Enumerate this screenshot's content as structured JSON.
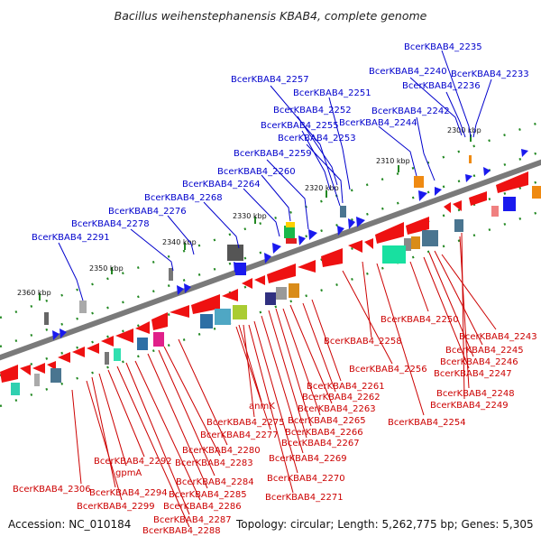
{
  "title": "Bacillus weihenstephanensis KBAB4, complete genome",
  "footer": {
    "accession": "Accession: NC_010184",
    "summary": "Topology: circular; Length: 5,262,775 bp; Genes: 5,305"
  },
  "colors": {
    "forward_label": "#0000cc",
    "reverse_label": "#cc0000",
    "forward_gene": "#1a1aee",
    "reverse_gene": "#ee1111",
    "backbone": "#7a7a7a",
    "tick": "#228822"
  },
  "kbp_labels": [
    "2300 kbp",
    "2310 kbp",
    "2320 kbp",
    "2330 kbp",
    "2340 kbp",
    "2350 kbp",
    "2360 kbp"
  ],
  "forward_labels": [
    "BcerKBAB4_2235",
    "BcerKBAB4_2240",
    "BcerKBAB4_2233",
    "BcerKBAB4_2236",
    "BcerKBAB4_2257",
    "BcerKBAB4_2251",
    "BcerKBAB4_2252",
    "BcerKBAB4_2242",
    "BcerKBAB4_2255",
    "BcerKBAB4_2244",
    "BcerKBAB4_2253",
    "BcerKBAB4_2259",
    "BcerKBAB4_2260",
    "BcerKBAB4_2264",
    "BcerKBAB4_2268",
    "BcerKBAB4_2276",
    "BcerKBAB4_2278",
    "BcerKBAB4_2291"
  ],
  "reverse_labels": [
    "BcerKBAB4_2250",
    "BcerKBAB4_2243",
    "BcerKBAB4_2258",
    "BcerKBAB4_2245",
    "BcerKBAB4_2246",
    "BcerKBAB4_2256",
    "BcerKBAB4_2247",
    "BcerKBAB4_2261",
    "BcerKBAB4_2262",
    "BcerKBAB4_2248",
    "anmK",
    "BcerKBAB4_2263",
    "BcerKBAB4_2249",
    "BcerKBAB4_2265",
    "BcerKBAB4_2254",
    "BcerKBAB4_2275",
    "BcerKBAB4_2266",
    "BcerKBAB4_2277",
    "BcerKBAB4_2267",
    "BcerKBAB4_2280",
    "BcerKBAB4_2269",
    "BcerKBAB4_2292",
    "BcerKBAB4_2283",
    "gpmA",
    "BcerKBAB4_2270",
    "BcerKBAB4_2284",
    "BcerKBAB4_2306",
    "BcerKBAB4_2294",
    "BcerKBAB4_2285",
    "BcerKBAB4_2271",
    "BcerKBAB4_2299",
    "BcerKBAB4_2286",
    "BcerKBAB4_2287",
    "BcerKBAB4_2288"
  ]
}
